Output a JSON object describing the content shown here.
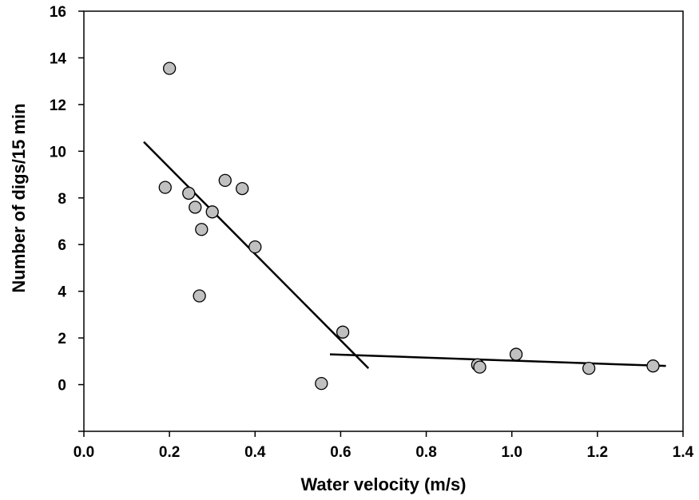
{
  "chart_data": {
    "type": "scatter",
    "xlabel": "Water velocity (m/s)",
    "ylabel": "Number of digs/15 min",
    "xlim": [
      0.0,
      1.4
    ],
    "ylim": [
      -2,
      16
    ],
    "x_ticks": [
      {
        "value": 0.0,
        "label": "0.0"
      },
      {
        "value": 0.2,
        "label": "0.2"
      },
      {
        "value": 0.4,
        "label": "0.4"
      },
      {
        "value": 0.6,
        "label": "0.6"
      },
      {
        "value": 0.8,
        "label": "0.8"
      },
      {
        "value": 1.0,
        "label": "1.0"
      },
      {
        "value": 1.2,
        "label": "1.2"
      },
      {
        "value": 1.4,
        "label": "1.4"
      }
    ],
    "y_ticks": [
      {
        "value": -2,
        "label": ""
      },
      {
        "value": 0,
        "label": "0"
      },
      {
        "value": 2,
        "label": "2"
      },
      {
        "value": 4,
        "label": "4"
      },
      {
        "value": 6,
        "label": "6"
      },
      {
        "value": 8,
        "label": "8"
      },
      {
        "value": 10,
        "label": "10"
      },
      {
        "value": 12,
        "label": "12"
      },
      {
        "value": 14,
        "label": "14"
      },
      {
        "value": 16,
        "label": "16"
      }
    ],
    "grid": false,
    "points": [
      {
        "x": 0.2,
        "y": 13.55
      },
      {
        "x": 0.19,
        "y": 8.45
      },
      {
        "x": 0.245,
        "y": 8.2
      },
      {
        "x": 0.26,
        "y": 7.6
      },
      {
        "x": 0.3,
        "y": 7.4
      },
      {
        "x": 0.275,
        "y": 6.65
      },
      {
        "x": 0.33,
        "y": 8.75
      },
      {
        "x": 0.37,
        "y": 8.4
      },
      {
        "x": 0.4,
        "y": 5.9
      },
      {
        "x": 0.27,
        "y": 3.8
      },
      {
        "x": 0.605,
        "y": 2.25
      },
      {
        "x": 0.555,
        "y": 0.05
      },
      {
        "x": 0.92,
        "y": 0.85
      },
      {
        "x": 0.925,
        "y": 0.75
      },
      {
        "x": 1.01,
        "y": 1.3
      },
      {
        "x": 1.18,
        "y": 0.7
      },
      {
        "x": 1.33,
        "y": 0.8
      }
    ],
    "fit_lines": [
      {
        "x": [
          0.14,
          0.665
        ],
        "y": [
          10.4,
          0.7
        ]
      },
      {
        "x": [
          0.575,
          1.36
        ],
        "y": [
          1.3,
          0.8
        ]
      }
    ],
    "colors": {
      "point_fill": "#c0c0c0",
      "point_stroke": "#000000",
      "line": "#000000"
    }
  }
}
